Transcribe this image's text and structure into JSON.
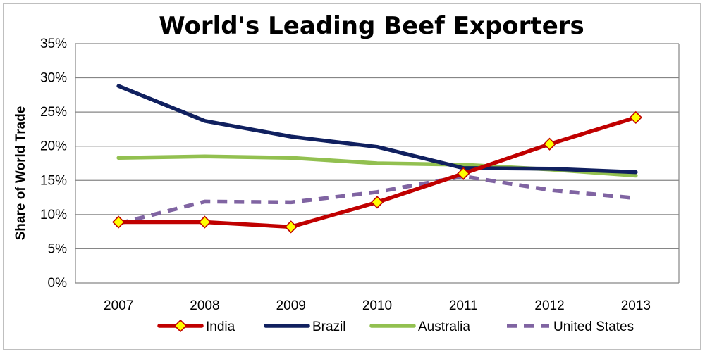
{
  "chart_data": {
    "type": "line",
    "title": "World's Leading Beef Exporters",
    "xlabel": "",
    "ylabel": "Share of World Trade",
    "categories": [
      "2007",
      "2008",
      "2009",
      "2010",
      "2011",
      "2012",
      "2013"
    ],
    "y_ticks": [
      "0%",
      "5%",
      "10%",
      "15%",
      "20%",
      "25%",
      "30%",
      "35%"
    ],
    "ylim": [
      0,
      35
    ],
    "grid": true,
    "legend_position": "bottom",
    "series": [
      {
        "name": "India",
        "values": [
          8.9,
          8.9,
          8.2,
          11.8,
          16.0,
          20.3,
          24.2
        ],
        "color": "#c00000",
        "dash": false,
        "markers": true
      },
      {
        "name": "Brazil",
        "values": [
          28.8,
          23.7,
          21.4,
          19.9,
          16.8,
          16.7,
          16.2
        ],
        "color": "#10205f",
        "dash": false,
        "markers": false
      },
      {
        "name": "Australia",
        "values": [
          18.3,
          18.5,
          18.3,
          17.5,
          17.3,
          16.6,
          15.7
        ],
        "color": "#92c050",
        "dash": false,
        "markers": false
      },
      {
        "name": "United States",
        "values": [
          8.7,
          11.9,
          11.8,
          13.3,
          15.6,
          13.6,
          12.4
        ],
        "color": "#8064a2",
        "dash": true,
        "markers": false
      }
    ]
  }
}
